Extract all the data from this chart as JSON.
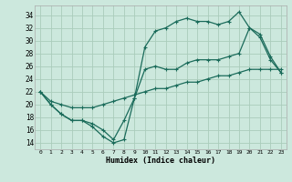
{
  "xlabel": "Humidex (Indice chaleur)",
  "bg_color": "#cce8dd",
  "grid_color": "#aaccbb",
  "line_color": "#1a6b5a",
  "xlim": [
    -0.5,
    23.5
  ],
  "ylim": [
    13,
    35.5
  ],
  "yticks": [
    14,
    16,
    18,
    20,
    22,
    24,
    26,
    28,
    30,
    32,
    34
  ],
  "xticks": [
    0,
    1,
    2,
    3,
    4,
    5,
    6,
    7,
    8,
    9,
    10,
    11,
    12,
    13,
    14,
    15,
    16,
    17,
    18,
    19,
    20,
    21,
    22,
    23
  ],
  "line1_x": [
    0,
    1,
    2,
    3,
    4,
    5,
    6,
    7,
    8,
    9,
    10,
    11,
    12,
    13,
    14,
    15,
    16,
    17,
    18,
    19,
    20,
    21,
    22,
    23
  ],
  "line1_y": [
    22,
    20,
    18.5,
    17.5,
    17.5,
    16.5,
    15,
    14,
    14.5,
    21,
    29,
    31.5,
    32,
    33,
    33.5,
    33,
    33,
    32.5,
    33,
    34.5,
    32,
    30.5,
    27,
    25
  ],
  "line2_x": [
    0,
    1,
    2,
    3,
    4,
    5,
    6,
    7,
    8,
    9,
    10,
    11,
    12,
    13,
    14,
    15,
    16,
    17,
    18,
    19,
    20,
    21,
    22,
    23
  ],
  "line2_y": [
    22,
    20,
    18.5,
    17.5,
    17.5,
    17,
    16,
    14.5,
    17.5,
    21,
    25.5,
    26,
    25.5,
    25.5,
    26.5,
    27,
    27,
    27,
    27.5,
    28,
    32,
    31,
    27.5,
    25
  ],
  "line3_x": [
    0,
    1,
    2,
    3,
    4,
    5,
    6,
    7,
    8,
    9,
    10,
    11,
    12,
    13,
    14,
    15,
    16,
    17,
    18,
    19,
    20,
    21,
    22,
    23
  ],
  "line3_y": [
    22,
    20.5,
    20,
    19.5,
    19.5,
    19.5,
    20,
    20.5,
    21,
    21.5,
    22,
    22.5,
    22.5,
    23,
    23.5,
    23.5,
    24,
    24.5,
    24.5,
    25,
    25.5,
    25.5,
    25.5,
    25.5
  ]
}
